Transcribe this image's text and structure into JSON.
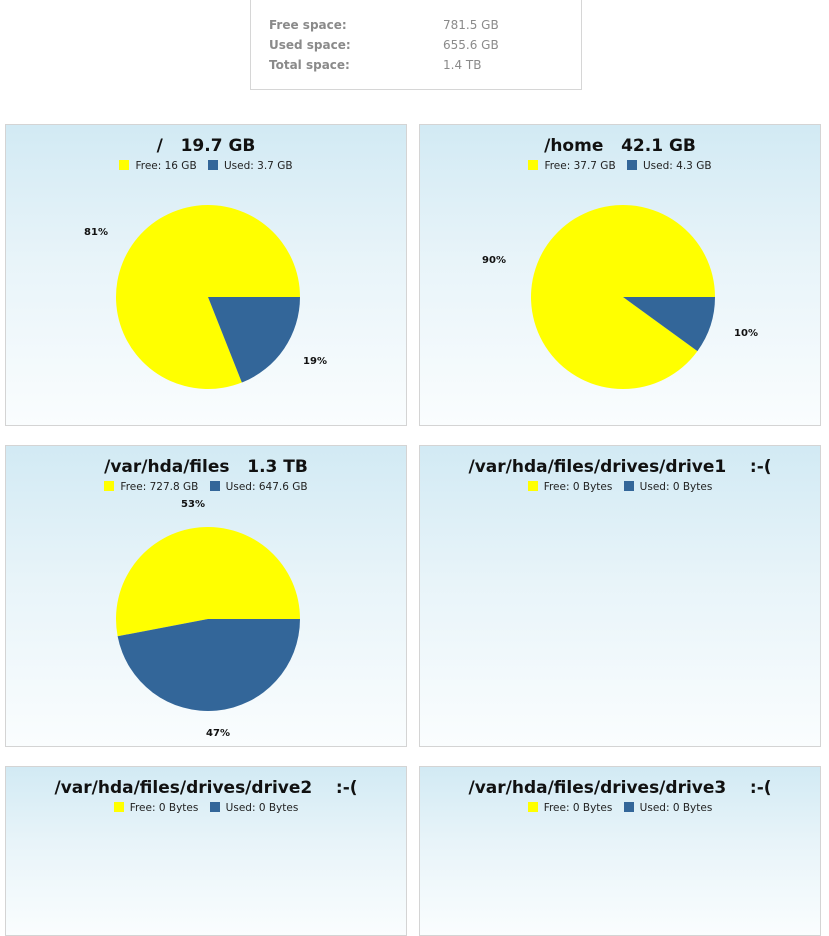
{
  "summary": {
    "free_label": "Free space:",
    "free_value": "781.5 GB",
    "used_label": "Used space:",
    "used_value": "655.6 GB",
    "total_label": "Total space:",
    "total_value": "1.4 TB"
  },
  "colors": {
    "free": "#ffff00",
    "used": "#336699"
  },
  "chart_data": [
    {
      "type": "pie",
      "title": "/   19.7 GB",
      "legend": {
        "free": "Free: 16 GB",
        "used": "Used: 3.7 GB"
      },
      "slices": [
        {
          "name": "Free",
          "value": 81,
          "label": "81%"
        },
        {
          "name": "Used",
          "value": 19,
          "label": "19%"
        }
      ]
    },
    {
      "type": "pie",
      "title": "/home   42.1 GB",
      "legend": {
        "free": "Free: 37.7 GB",
        "used": "Used: 4.3 GB"
      },
      "slices": [
        {
          "name": "Free",
          "value": 90,
          "label": "90%"
        },
        {
          "name": "Used",
          "value": 10,
          "label": "10%"
        }
      ]
    },
    {
      "type": "pie",
      "title": "/var/hda/files   1.3 TB",
      "legend": {
        "free": "Free: 727.8 GB",
        "used": "Used: 647.6 GB"
      },
      "slices": [
        {
          "name": "Free",
          "value": 53,
          "label": "53%"
        },
        {
          "name": "Used",
          "value": 47,
          "label": "47%"
        }
      ]
    },
    {
      "type": "pie",
      "title": "/var/hda/files/drives/drive1    :-(",
      "legend": {
        "free": "Free: 0 Bytes",
        "used": "Used: 0 Bytes"
      },
      "slices": []
    },
    {
      "type": "pie",
      "title": "/var/hda/files/drives/drive2    :-(",
      "legend": {
        "free": "Free: 0 Bytes",
        "used": "Used: 0 Bytes"
      },
      "slices": []
    },
    {
      "type": "pie",
      "title": "/var/hda/files/drives/drive3    :-(",
      "legend": {
        "free": "Free: 0 Bytes",
        "used": "Used: 0 Bytes"
      },
      "slices": []
    }
  ]
}
